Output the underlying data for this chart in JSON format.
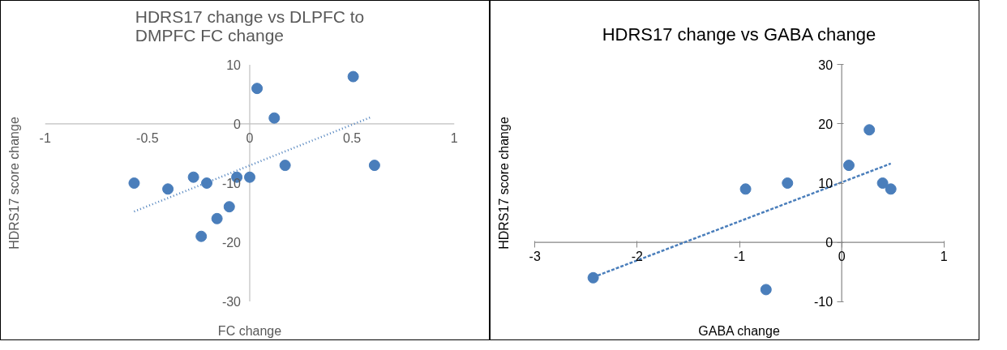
{
  "chart_data": [
    {
      "type": "scatter",
      "title": "HDRS17 change vs DLPFC to DMPFC FC change",
      "xlabel": "FC change",
      "ylabel": "HDRS17 score change",
      "xlim": [
        -1,
        1
      ],
      "ylim": [
        -30,
        10
      ],
      "xticks": [
        -1,
        -0.5,
        0,
        0.5,
        1
      ],
      "yticks": [
        -30,
        -20,
        -10,
        0,
        10
      ],
      "grid": false,
      "series": [
        {
          "marker": "circle",
          "color": "#4a7ebb",
          "x": [
            -0.565,
            -0.4,
            -0.275,
            -0.21,
            -0.237,
            -0.16,
            -0.1,
            -0.063,
            0.0,
            0.036,
            0.12,
            0.173,
            0.506,
            0.61
          ],
          "values": [
            -10,
            -11,
            -9,
            -10,
            -19,
            -16,
            -14,
            -9,
            -9,
            6,
            1,
            -7,
            8,
            -7
          ]
        },
        {
          "type": "line",
          "color": "#4a7ebb",
          "line_style": "dotted",
          "x": [
            -0.565,
            0.597
          ],
          "values": [
            -14.8,
            1.2
          ]
        }
      ]
    },
    {
      "type": "scatter",
      "title": "HDRS17 change vs GABA change",
      "xlabel": "GABA change",
      "ylabel": "HDRS17 score change",
      "xlim": [
        -3,
        1
      ],
      "ylim": [
        -10,
        30
      ],
      "xticks": [
        -3,
        -2,
        -1,
        0,
        1
      ],
      "yticks": [
        -10,
        0,
        10,
        20,
        30
      ],
      "grid": false,
      "series": [
        {
          "marker": "circle",
          "color": "#4a7ebb",
          "x": [
            -2.43,
            -0.94,
            -0.53,
            -0.74,
            0.07,
            0.27,
            0.4,
            0.48
          ],
          "values": [
            -6,
            9,
            10,
            -8,
            13,
            19,
            10,
            9
          ]
        },
        {
          "type": "line",
          "color": "#4a7ebb",
          "line_style": "dashed",
          "x": [
            -2.43,
            0.48
          ],
          "values": [
            -5.9,
            13.3
          ]
        }
      ]
    }
  ]
}
